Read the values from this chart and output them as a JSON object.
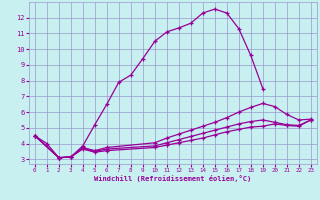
{
  "xlabel": "Windchill (Refroidissement éolien,°C)",
  "background_color": "#c8f0f0",
  "grid_color": "#9999cc",
  "line_color": "#990099",
  "xlim": [
    -0.5,
    23.5
  ],
  "ylim": [
    2.7,
    13.0
  ],
  "xticks": [
    0,
    1,
    2,
    3,
    4,
    5,
    6,
    7,
    8,
    9,
    10,
    11,
    12,
    13,
    14,
    15,
    16,
    17,
    18,
    19,
    20,
    21,
    22,
    23
  ],
  "yticks": [
    3,
    4,
    5,
    6,
    7,
    8,
    9,
    10,
    11,
    12
  ],
  "lines": [
    {
      "x": [
        0,
        1,
        2,
        3,
        4,
        5,
        6,
        7,
        8,
        9,
        10,
        11,
        12,
        13,
        14,
        15,
        16,
        17,
        18,
        19
      ],
      "y": [
        4.5,
        4.0,
        3.1,
        3.15,
        3.85,
        5.2,
        6.5,
        7.9,
        8.35,
        9.4,
        10.5,
        11.1,
        11.35,
        11.65,
        12.3,
        12.55,
        12.3,
        11.3,
        9.6,
        7.5
      ]
    },
    {
      "x": [
        0,
        2,
        3,
        4,
        5,
        6,
        10,
        11,
        12,
        13,
        14,
        15,
        16,
        17,
        18,
        19,
        20,
        21,
        22,
        23
      ],
      "y": [
        4.5,
        3.1,
        3.15,
        3.75,
        3.55,
        3.75,
        4.05,
        4.35,
        4.6,
        4.85,
        5.1,
        5.35,
        5.65,
        6.0,
        6.3,
        6.55,
        6.35,
        5.85,
        5.5,
        5.55
      ]
    },
    {
      "x": [
        0,
        2,
        3,
        4,
        5,
        6,
        10,
        11,
        12,
        13,
        14,
        15,
        16,
        17,
        18,
        19,
        20,
        21,
        22,
        23
      ],
      "y": [
        4.5,
        3.1,
        3.15,
        3.7,
        3.5,
        3.65,
        3.85,
        4.05,
        4.25,
        4.45,
        4.65,
        4.85,
        5.05,
        5.25,
        5.4,
        5.5,
        5.35,
        5.2,
        5.15,
        5.5
      ]
    },
    {
      "x": [
        0,
        2,
        3,
        4,
        5,
        6,
        10,
        11,
        12,
        13,
        14,
        15,
        16,
        17,
        18,
        19,
        20,
        21,
        22,
        23
      ],
      "y": [
        4.5,
        3.1,
        3.15,
        3.65,
        3.45,
        3.55,
        3.75,
        3.9,
        4.05,
        4.2,
        4.35,
        4.55,
        4.75,
        4.9,
        5.05,
        5.1,
        5.25,
        5.15,
        5.1,
        5.5
      ]
    }
  ]
}
